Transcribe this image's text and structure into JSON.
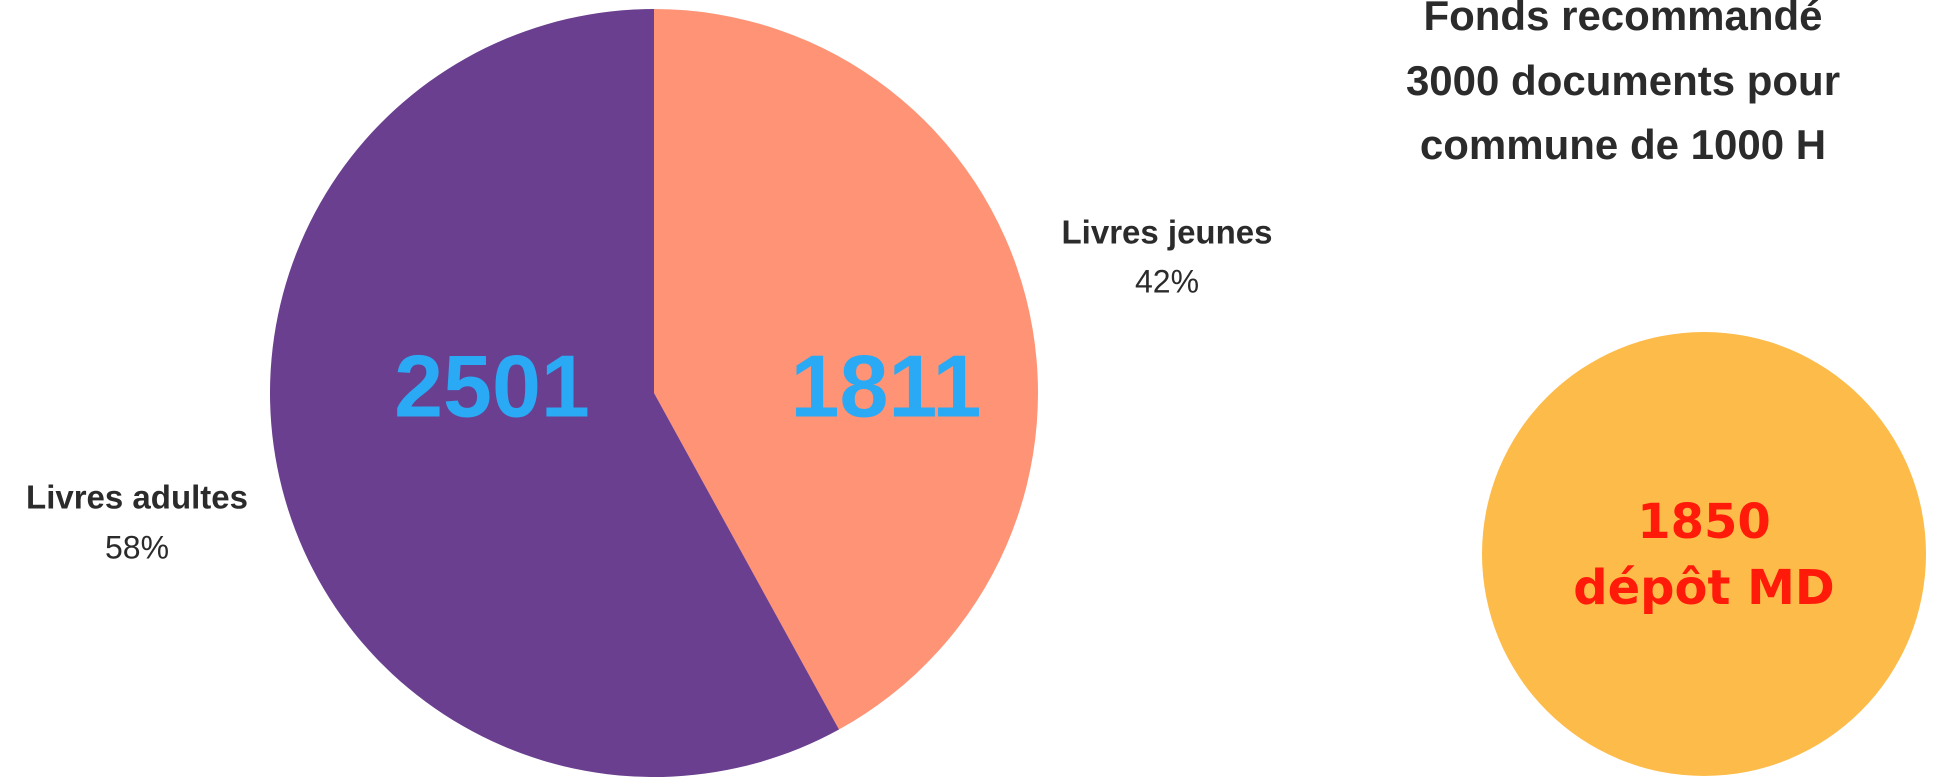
{
  "chart_data": {
    "type": "pie",
    "categories": [
      "Livres jeunes",
      "Livres adultes"
    ],
    "values": [
      42,
      58
    ],
    "value_labels": [
      "42%",
      "58%"
    ],
    "colors": [
      "#ff9375",
      "#6a3f8f"
    ],
    "counts": [
      1811,
      2501
    ],
    "title": [
      "Fonds recommandé",
      "3000 documents pour",
      "commune de 1000 H"
    ],
    "badge": [
      "1850",
      "dépôt MD"
    ]
  }
}
